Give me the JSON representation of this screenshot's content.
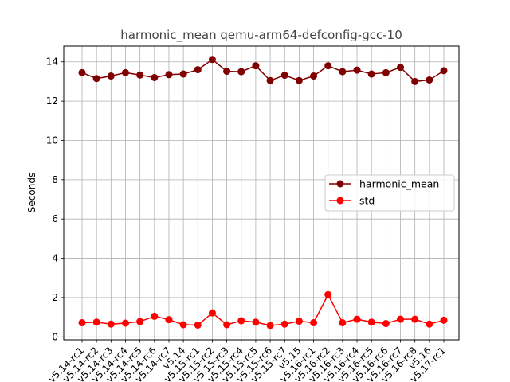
{
  "chart_data": {
    "type": "line",
    "title": "harmonic_mean qemu-arm64-defconfig-gcc-10",
    "xlabel": "",
    "ylabel": "Seconds",
    "ylim": [
      -0.15,
      14.8
    ],
    "yticks": [
      0,
      2,
      4,
      6,
      8,
      10,
      12,
      14
    ],
    "grid": true,
    "legend_position": "center-right",
    "categories": [
      "v5.14-rc1",
      "v5.14-rc2",
      "v5.14-rc3",
      "v5.14-rc4",
      "v5.14-rc5",
      "v5.14-rc6",
      "v5.14-rc7",
      "v5.14",
      "v5.15-rc1",
      "v5.15-rc2",
      "v5.15-rc3",
      "v5.15-rc4",
      "v5.15-rc5",
      "v5.15-rc6",
      "v5.15-rc7",
      "v5.15",
      "v5.16-rc1",
      "v5.16-rc2",
      "v5.16-rc3",
      "v5.16-rc4",
      "v5.16-rc5",
      "v5.16-rc6",
      "v5.16-rc7",
      "v5.16-rc8",
      "v5.16",
      "v5.17-rc1"
    ],
    "series": [
      {
        "name": "harmonic_mean",
        "color": "#800000",
        "values": [
          13.45,
          13.15,
          13.28,
          13.45,
          13.33,
          13.2,
          13.35,
          13.38,
          13.6,
          14.12,
          13.52,
          13.5,
          13.8,
          13.05,
          13.32,
          13.05,
          13.28,
          13.8,
          13.5,
          13.58,
          13.38,
          13.45,
          13.72,
          13.0,
          13.08,
          13.55
        ]
      },
      {
        "name": "std",
        "color": "#ff0000",
        "values": [
          0.72,
          0.75,
          0.65,
          0.7,
          0.78,
          1.05,
          0.88,
          0.62,
          0.6,
          1.22,
          0.62,
          0.82,
          0.75,
          0.58,
          0.65,
          0.8,
          0.72,
          2.15,
          0.72,
          0.9,
          0.75,
          0.68,
          0.9,
          0.9,
          0.65,
          0.85
        ]
      }
    ]
  }
}
